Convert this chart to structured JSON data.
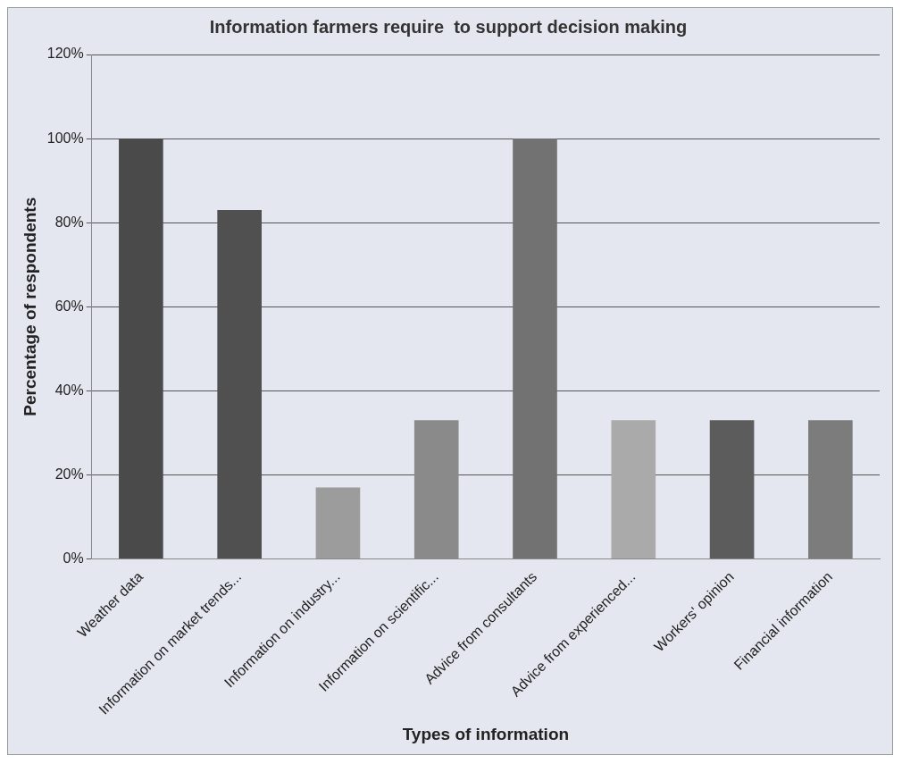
{
  "chart_data": {
    "type": "bar",
    "title": "Information farmers require  to support decision making",
    "xlabel": "Types of information",
    "ylabel": "Percentage of respondents",
    "categories": [
      "Weather data",
      "Information on market trends...",
      "Information on industry...",
      "Information on scientific...",
      "Advice from consultants",
      "Advice from experienced...",
      "Workers' opinion",
      "Financial information"
    ],
    "values": [
      100,
      83,
      17,
      33,
      100,
      33,
      33,
      33
    ],
    "colors": [
      "#4a4a4a",
      "#505050",
      "#9c9c9c",
      "#8a8a8a",
      "#727272",
      "#aaaaaa",
      "#5c5c5c",
      "#7c7c7c"
    ],
    "ylim": [
      0,
      120
    ],
    "yticks": [
      {
        "value": 0,
        "label": "0%"
      },
      {
        "value": 20,
        "label": "20%"
      },
      {
        "value": 40,
        "label": "40%"
      },
      {
        "value": 60,
        "label": "60%"
      },
      {
        "value": 80,
        "label": "80%"
      },
      {
        "value": 100,
        "label": "100%"
      },
      {
        "value": 120,
        "label": "120%"
      }
    ],
    "grid": "y",
    "legend": false
  }
}
